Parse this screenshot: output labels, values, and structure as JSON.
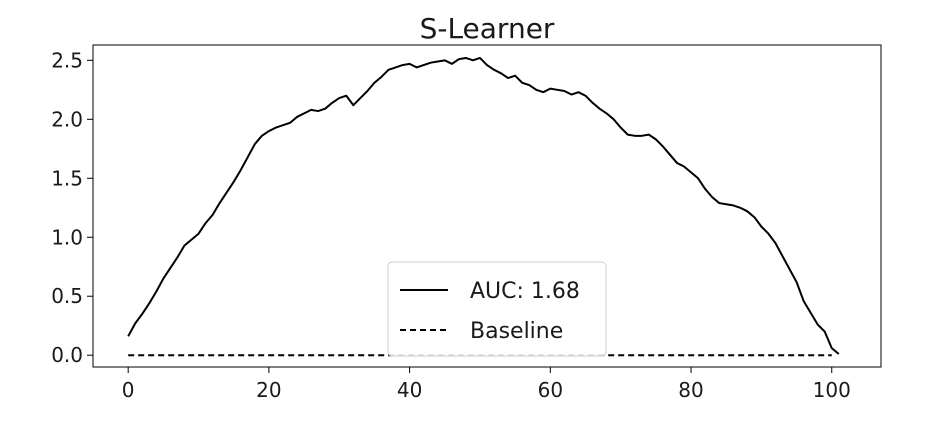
{
  "chart_data": {
    "type": "line",
    "title": "S-Learner",
    "xlabel": "",
    "ylabel": "",
    "xlim": [
      -5,
      107
    ],
    "ylim": [
      -0.1,
      2.63
    ],
    "xticks": [
      0,
      20,
      40,
      60,
      80,
      100
    ],
    "yticks": [
      0.0,
      0.5,
      1.0,
      1.5,
      2.0,
      2.5
    ],
    "xtick_labels": [
      "0",
      "20",
      "40",
      "60",
      "80",
      "100"
    ],
    "ytick_labels": [
      "0.0",
      "0.5",
      "1.0",
      "1.5",
      "2.0",
      "2.5"
    ],
    "grid": false,
    "legend": {
      "placement": "lower center"
    },
    "series": [
      {
        "name": "AUC: 1.68",
        "style": "solid",
        "color": "#000000",
        "points": [
          [
            0,
            0.16
          ],
          [
            1,
            0.27
          ],
          [
            2,
            0.35
          ],
          [
            3,
            0.44
          ],
          [
            4,
            0.54
          ],
          [
            5,
            0.65
          ],
          [
            6,
            0.74
          ],
          [
            7,
            0.83
          ],
          [
            8,
            0.93
          ],
          [
            9,
            0.98
          ],
          [
            10,
            1.03
          ],
          [
            11,
            1.12
          ],
          [
            12,
            1.19
          ],
          [
            13,
            1.29
          ],
          [
            14,
            1.38
          ],
          [
            15,
            1.47
          ],
          [
            16,
            1.57
          ],
          [
            17,
            1.68
          ],
          [
            18,
            1.79
          ],
          [
            19,
            1.86
          ],
          [
            20,
            1.9
          ],
          [
            21,
            1.93
          ],
          [
            22,
            1.95
          ],
          [
            23,
            1.97
          ],
          [
            24,
            2.02
          ],
          [
            25,
            2.05
          ],
          [
            26,
            2.08
          ],
          [
            27,
            2.07
          ],
          [
            28,
            2.09
          ],
          [
            29,
            2.14
          ],
          [
            30,
            2.18
          ],
          [
            31,
            2.2
          ],
          [
            32,
            2.12
          ],
          [
            33,
            2.18
          ],
          [
            34,
            2.24
          ],
          [
            35,
            2.31
          ],
          [
            36,
            2.36
          ],
          [
            37,
            2.42
          ],
          [
            38,
            2.44
          ],
          [
            39,
            2.46
          ],
          [
            40,
            2.47
          ],
          [
            41,
            2.44
          ],
          [
            42,
            2.46
          ],
          [
            43,
            2.48
          ],
          [
            44,
            2.49
          ],
          [
            45,
            2.5
          ],
          [
            46,
            2.47
          ],
          [
            47,
            2.51
          ],
          [
            48,
            2.52
          ],
          [
            49,
            2.5
          ],
          [
            50,
            2.52
          ],
          [
            51,
            2.46
          ],
          [
            52,
            2.42
          ],
          [
            53,
            2.39
          ],
          [
            54,
            2.35
          ],
          [
            55,
            2.37
          ],
          [
            56,
            2.31
          ],
          [
            57,
            2.29
          ],
          [
            58,
            2.25
          ],
          [
            59,
            2.23
          ],
          [
            60,
            2.26
          ],
          [
            61,
            2.25
          ],
          [
            62,
            2.24
          ],
          [
            63,
            2.21
          ],
          [
            64,
            2.23
          ],
          [
            65,
            2.2
          ],
          [
            66,
            2.14
          ],
          [
            67,
            2.09
          ],
          [
            68,
            2.05
          ],
          [
            69,
            2.0
          ],
          [
            70,
            1.93
          ],
          [
            71,
            1.87
          ],
          [
            72,
            1.86
          ],
          [
            73,
            1.86
          ],
          [
            74,
            1.87
          ],
          [
            75,
            1.83
          ],
          [
            76,
            1.77
          ],
          [
            77,
            1.7
          ],
          [
            78,
            1.63
          ],
          [
            79,
            1.6
          ],
          [
            80,
            1.55
          ],
          [
            81,
            1.5
          ],
          [
            82,
            1.41
          ],
          [
            83,
            1.34
          ],
          [
            84,
            1.29
          ],
          [
            85,
            1.28
          ],
          [
            86,
            1.27
          ],
          [
            87,
            1.25
          ],
          [
            88,
            1.22
          ],
          [
            89,
            1.17
          ],
          [
            90,
            1.09
          ],
          [
            91,
            1.03
          ],
          [
            92,
            0.95
          ],
          [
            93,
            0.84
          ],
          [
            94,
            0.73
          ],
          [
            95,
            0.62
          ],
          [
            96,
            0.46
          ],
          [
            97,
            0.36
          ],
          [
            98,
            0.26
          ],
          [
            99,
            0.2
          ],
          [
            100,
            0.06
          ],
          [
            101,
            0.01
          ]
        ]
      },
      {
        "name": "Baseline",
        "style": "dashed",
        "color": "#000000",
        "points": [
          [
            0,
            0.0
          ],
          [
            100,
            0.0
          ]
        ]
      }
    ]
  }
}
